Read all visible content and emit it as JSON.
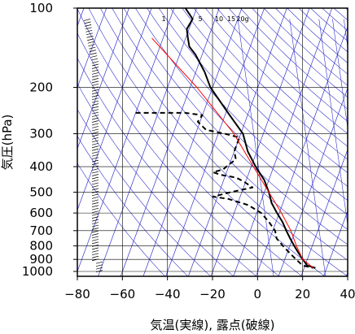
{
  "chart_data": {
    "type": "line",
    "title": "",
    "xlabel": "気温(実線), 露点(破線)",
    "ylabel": "気圧(hPa)",
    "x_scale": "skew-T (isotherms tilted)",
    "y_scale": "log (pressure, increasing downward)",
    "xlim": [
      -80,
      40
    ],
    "ylim": [
      1050,
      100
    ],
    "x_ticks": [
      -80,
      -60,
      -40,
      -20,
      0,
      20,
      40
    ],
    "x_tick_labels": [
      "−80",
      "−60",
      "−40",
      "−20",
      "0",
      "20",
      "40"
    ],
    "y_ticks": [
      100,
      200,
      300,
      400,
      500,
      600,
      700,
      800,
      900,
      1000
    ],
    "y_tick_labels": [
      "100",
      "200",
      "300",
      "400",
      "500",
      "600",
      "700",
      "800",
      "900",
      "1000"
    ],
    "grid": true,
    "mixing_ratio_labels": [
      "1",
      "5",
      "10",
      "15",
      "20g"
    ],
    "colors": {
      "isotherms_adiabats": "#3333cc",
      "temperature": "#000000",
      "dewpoint": "#000000",
      "parcel": "#ff0000",
      "grid": "#000000"
    },
    "series": [
      {
        "name": "",
        "style": "solid",
        "points": [
          {
            "p": 100,
            "t": -75
          },
          {
            "p": 110,
            "t": -70
          },
          {
            "p": 120,
            "t": -71
          },
          {
            "p": 130,
            "t": -69
          },
          {
            "p": 140,
            "t": -67
          },
          {
            "p": 150,
            "t": -63
          },
          {
            "p": 175,
            "t": -56
          },
          {
            "p": 200,
            "t": -51
          },
          {
            "p": 250,
            "t": -39
          },
          {
            "p": 300,
            "t": -29
          },
          {
            "p": 350,
            "t": -24
          },
          {
            "p": 400,
            "t": -18
          },
          {
            "p": 450,
            "t": -12
          },
          {
            "p": 500,
            "t": -8
          },
          {
            "p": 550,
            "t": -5
          },
          {
            "p": 600,
            "t": -1
          },
          {
            "p": 650,
            "t": 3
          },
          {
            "p": 700,
            "t": 6
          },
          {
            "p": 750,
            "t": 9
          },
          {
            "p": 800,
            "t": 12
          },
          {
            "p": 850,
            "t": 15
          },
          {
            "p": 900,
            "t": 18
          },
          {
            "p": 950,
            "t": 21
          },
          {
            "p": 970,
            "t": 25
          }
        ]
      },
      {
        "name": "",
        "style": "dashed",
        "points": [
          {
            "p": 250,
            "t": -80
          },
          {
            "p": 250,
            "t": -58
          },
          {
            "p": 255,
            "t": -50
          },
          {
            "p": 270,
            "t": -51
          },
          {
            "p": 290,
            "t": -46
          },
          {
            "p": 300,
            "t": -37
          },
          {
            "p": 310,
            "t": -30
          },
          {
            "p": 350,
            "t": -30
          },
          {
            "p": 375,
            "t": -28
          },
          {
            "p": 400,
            "t": -31
          },
          {
            "p": 410,
            "t": -32
          },
          {
            "p": 420,
            "t": -36
          },
          {
            "p": 430,
            "t": -32
          },
          {
            "p": 440,
            "t": -25
          },
          {
            "p": 455,
            "t": -21
          },
          {
            "p": 480,
            "t": -16
          },
          {
            "p": 500,
            "t": -25
          },
          {
            "p": 520,
            "t": -32
          },
          {
            "p": 530,
            "t": -25
          },
          {
            "p": 560,
            "t": -15
          },
          {
            "p": 600,
            "t": -8
          },
          {
            "p": 650,
            "t": -3
          },
          {
            "p": 700,
            "t": 1
          },
          {
            "p": 750,
            "t": 3
          },
          {
            "p": 800,
            "t": 7
          },
          {
            "p": 850,
            "t": 11
          },
          {
            "p": 900,
            "t": 15
          },
          {
            "p": 950,
            "t": 19
          },
          {
            "p": 970,
            "t": 24
          }
        ]
      },
      {
        "name": "",
        "style": "solid",
        "color": "#ff0000",
        "points": [
          {
            "p": 130,
            "t": -85
          },
          {
            "p": 200,
            "t": -57
          },
          {
            "p": 300,
            "t": -33
          },
          {
            "p": 400,
            "t": -19
          },
          {
            "p": 500,
            "t": -8
          },
          {
            "p": 600,
            "t": 1
          },
          {
            "p": 700,
            "t": 8
          },
          {
            "p": 800,
            "t": 13
          },
          {
            "p": 900,
            "t": 18
          },
          {
            "p": 970,
            "t": 24
          }
        ]
      }
    ]
  }
}
